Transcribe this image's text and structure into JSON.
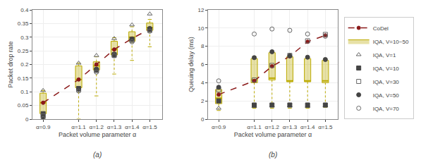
{
  "chart_data": [
    {
      "type": "box",
      "subtitle": "(a)",
      "xlabel": "Packet volume parameter α",
      "ylabel": "Packet drop rate",
      "x": [
        0.9,
        1.1,
        1.2,
        1.3,
        1.4,
        1.5
      ],
      "xlim": [
        0.84,
        1.57
      ],
      "xticks": [
        {
          "value": 0.9,
          "label": "α=0.9"
        },
        {
          "value": 1.1,
          "label": "α=1.1"
        },
        {
          "value": 1.2,
          "label": "α=1.2"
        },
        {
          "value": 1.3,
          "label": "α=1.3"
        },
        {
          "value": 1.4,
          "label": "α=1.4"
        },
        {
          "value": 1.5,
          "label": "α=1.5"
        }
      ],
      "ylim": [
        0,
        0.4
      ],
      "yticks": [
        0,
        0.05,
        0.1,
        0.15,
        0.2,
        0.25,
        0.3,
        0.35,
        0.4
      ],
      "grid": true,
      "legend": "lower right",
      "series": [
        {
          "name": "CoDel",
          "type": "line",
          "color": "#8B1A1A",
          "line_style": "dashed",
          "marker": "circle",
          "values": [
            0.06,
            0.145,
            0.2,
            0.255,
            0.295,
            0.33
          ]
        },
        {
          "name": "IQA, V=10~50",
          "type": "box",
          "color": "#BBAA00",
          "q1": [
            0.02,
            0.115,
            0.18,
            0.235,
            0.285,
            0.325
          ],
          "q3": [
            0.095,
            0.195,
            0.21,
            0.285,
            0.32,
            0.352
          ],
          "median": [
            0.06,
            0.145,
            0.195,
            0.255,
            0.3,
            0.335
          ],
          "whislo": [
            0.005,
            0.005,
            0.095,
            0.17,
            0.22,
            0.27
          ],
          "whishi": [
            0.1,
            0.2,
            0.22,
            0.293,
            0.33,
            0.36
          ],
          "whisker_min": [
            0.0,
            0.0,
            0.085,
            0.165,
            0.215,
            0.265
          ],
          "whisker_max": [
            0.105,
            0.205,
            0.228,
            0.298,
            0.338,
            0.365
          ]
        },
        {
          "name": "IQA, V=1",
          "type": "scatter",
          "color": "#666666",
          "marker": "triangle-up-open",
          "values": [
            0.105,
            0.205,
            0.233,
            0.295,
            0.345,
            0.385
          ]
        },
        {
          "name": "IQA, V=10",
          "type": "scatter",
          "color": "#444444",
          "marker": "square",
          "values": [
            0.02,
            0.112,
            0.18,
            0.236,
            0.292,
            0.328
          ]
        },
        {
          "name": "IQA, V=30",
          "type": "scatter",
          "color": "#666666",
          "marker": "square-open",
          "values": [
            0.012,
            0.108,
            0.178,
            0.233,
            0.288,
            0.325
          ]
        },
        {
          "name": "IQA, V=50",
          "type": "scatter",
          "color": "#444444",
          "marker": "circle",
          "values": [
            0.008,
            0.11,
            0.183,
            0.238,
            0.292,
            0.332
          ]
        },
        {
          "name": "IQA, V=70",
          "type": "scatter",
          "color": "#666666",
          "marker": "circle-open",
          "values": [
            0.002,
            0.103,
            0.172,
            0.232,
            0.283,
            0.322
          ]
        }
      ]
    },
    {
      "type": "box",
      "subtitle": "(b)",
      "xlabel": "Packet volume parameter α",
      "ylabel": "Queuing delay (ms)",
      "x": [
        0.9,
        1.1,
        1.2,
        1.3,
        1.4,
        1.5
      ],
      "xlim": [
        0.84,
        1.57
      ],
      "xticks": [
        {
          "value": 0.9,
          "label": "α=0.9"
        },
        {
          "value": 1.1,
          "label": "α=1.1"
        },
        {
          "value": 1.2,
          "label": "α=1.2"
        },
        {
          "value": 1.3,
          "label": "α=1.3"
        },
        {
          "value": 1.4,
          "label": "α=1.4"
        },
        {
          "value": 1.5,
          "label": "α=1.5"
        }
      ],
      "ylim": [
        0,
        12
      ],
      "yticks": [
        0,
        2,
        4,
        6,
        8,
        10,
        12
      ],
      "grid": true,
      "series": [
        {
          "name": "CoDel",
          "type": "line",
          "color": "#8B1A1A",
          "line_style": "dashed",
          "marker": "circle",
          "values": [
            2.7,
            4.2,
            5.8,
            6.9,
            8.5,
            9.2
          ]
        },
        {
          "name": "IQA, V=10~50",
          "type": "box",
          "color": "#BBAA00",
          "q1": [
            1.7,
            4.0,
            4.3,
            4.1,
            4.1,
            4.0
          ],
          "q3": [
            3.25,
            6.65,
            7.3,
            6.85,
            6.65,
            6.45
          ],
          "median": [
            2.3,
            4.3,
            4.5,
            4.2,
            4.2,
            4.2
          ],
          "whislo": [
            1.1,
            1.35,
            1.35,
            1.35,
            1.35,
            1.45
          ],
          "whishi": [
            3.4,
            6.75,
            7.4,
            6.95,
            6.8,
            6.55
          ],
          "whisker_min": [
            0.95,
            1.2,
            1.2,
            1.2,
            1.2,
            1.3
          ],
          "whisker_max": [
            3.55,
            6.9,
            7.5,
            7.05,
            6.9,
            6.65
          ]
        },
        {
          "name": "IQA, V=1",
          "type": "scatter",
          "color": "#666666",
          "marker": "triangle-up-open",
          "values": [
            1.2,
            1.4,
            1.45,
            1.45,
            1.4,
            1.45
          ]
        },
        {
          "name": "IQA, V=10",
          "type": "scatter",
          "color": "#444444",
          "marker": "square",
          "values": [
            2.0,
            1.55,
            1.55,
            1.55,
            1.55,
            1.55
          ]
        },
        {
          "name": "IQA, V=30",
          "type": "scatter",
          "color": "#666666",
          "marker": "square-open",
          "values": [
            3.2,
            4.3,
            5.9,
            7.0,
            8.6,
            9.3
          ]
        },
        {
          "name": "IQA, V=50",
          "type": "scatter",
          "color": "#444444",
          "marker": "circle",
          "values": [
            3.5,
            6.75,
            7.4,
            6.95,
            6.8,
            6.55
          ]
        },
        {
          "name": "IQA, V=70",
          "type": "scatter",
          "color": "#666666",
          "marker": "circle-open",
          "values": [
            4.2,
            9.35,
            9.9,
            9.75,
            9.35,
            9.1
          ]
        }
      ]
    }
  ]
}
